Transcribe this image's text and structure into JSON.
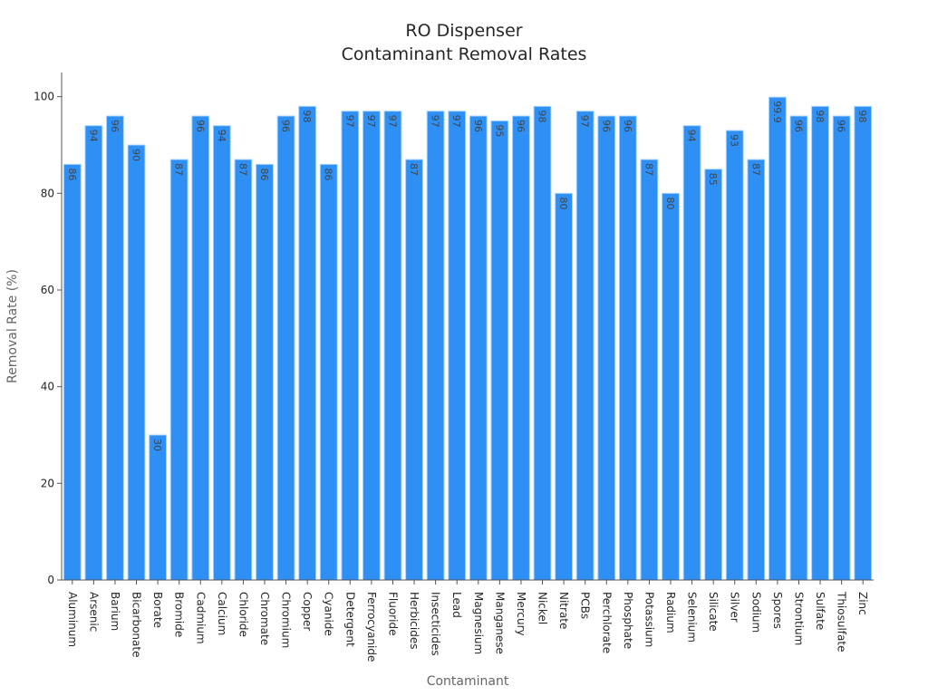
{
  "chart_data": {
    "type": "bar",
    "title": "RO Dispenser",
    "subtitle": "Contaminant Removal Rates",
    "xlabel": "Contaminant",
    "ylabel": "Removal Rate (%)",
    "ylim": [
      0,
      105
    ],
    "yticks": [
      0,
      20,
      40,
      60,
      80,
      100
    ],
    "grid": false,
    "bar_color": "#2e8ff5",
    "bar_edge_color": "#a8d4ff",
    "label_color": "#444444",
    "categories": [
      "Aluminum",
      "Arsenic",
      "Barium",
      "Bicarbonate",
      "Borate",
      "Bromide",
      "Cadmium",
      "Calcium",
      "Chloride",
      "Chromate",
      "Chromium",
      "Copper",
      "Cyanide",
      "Detergent",
      "Ferrocyanide",
      "Fluoride",
      "Herbicides",
      "Insecticides",
      "Lead",
      "Magnesium",
      "Manganese",
      "Mercury",
      "Nickel",
      "Nitrate",
      "PCBs",
      "Perchlorate",
      "Phosphate",
      "Potassium",
      "Radium",
      "Selenium",
      "Silicate",
      "Silver",
      "Sodium",
      "Spores",
      "Strontium",
      "Sulfate",
      "Thiosulfate",
      "Zinc"
    ],
    "values": [
      86,
      94,
      96,
      90,
      30,
      87,
      96,
      94,
      87,
      86,
      96,
      98,
      86,
      97,
      97,
      97,
      87,
      97,
      97,
      96,
      95,
      96,
      98,
      80,
      97,
      96,
      96,
      87,
      80,
      94,
      85,
      93,
      87,
      99.9,
      96,
      98,
      96,
      98
    ]
  }
}
